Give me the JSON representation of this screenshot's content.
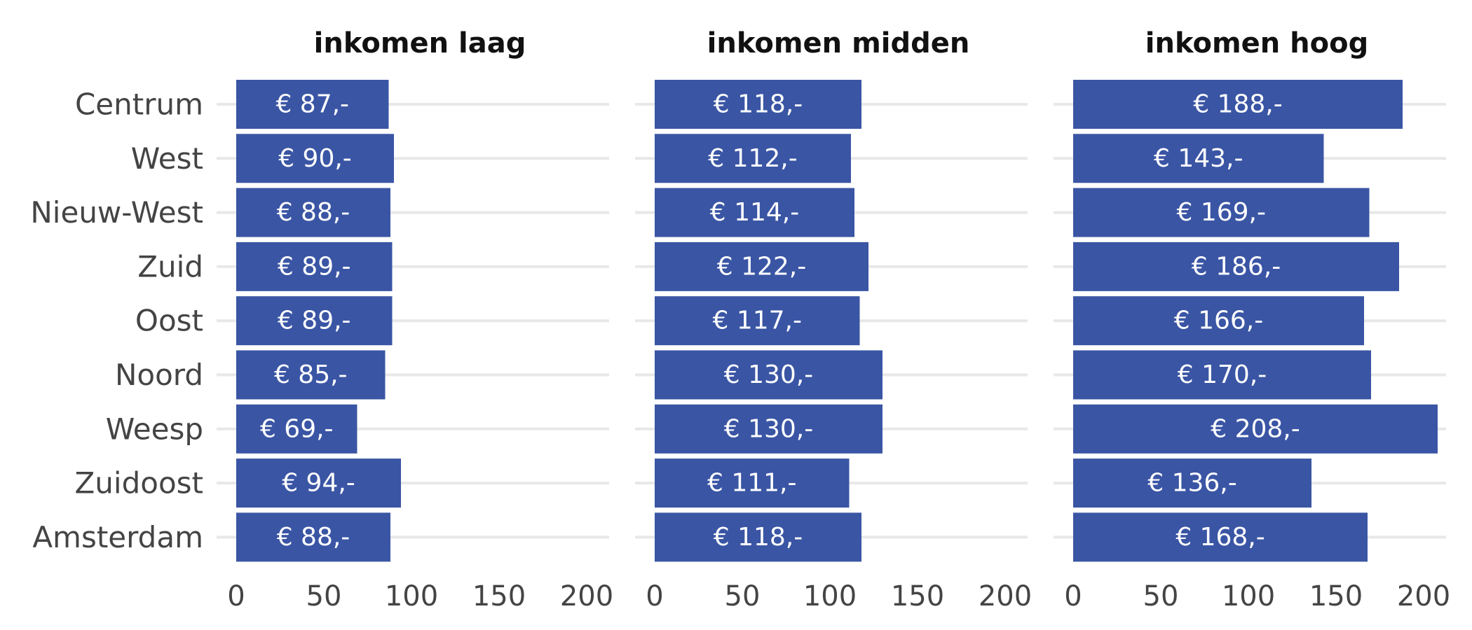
{
  "chart_data": {
    "type": "bar",
    "orientation": "horizontal",
    "facet_layout": "three panels side by side",
    "categories": [
      "Centrum",
      "West",
      "Nieuw-West",
      "Zuid",
      "Oost",
      "Noord",
      "Weesp",
      "Zuidoost",
      "Amsterdam"
    ],
    "xlim": [
      0,
      210
    ],
    "xticks": [
      0,
      50,
      100,
      150,
      200
    ],
    "xtick_labels": [
      "0",
      "50",
      "100",
      "150",
      "200"
    ],
    "bar_color": "#3a55a4",
    "grid": true,
    "legend": "none",
    "panels": [
      {
        "title": "inkomen laag",
        "values": [
          87,
          90,
          88,
          89,
          89,
          85,
          69,
          94,
          88
        ],
        "labels": [
          "€ 87,-",
          "€ 90,-",
          "€ 88,-",
          "€ 89,-",
          "€ 89,-",
          "€ 85,-",
          "€ 69,-",
          "€ 94,-",
          "€ 88,-"
        ]
      },
      {
        "title": "inkomen midden",
        "values": [
          118,
          112,
          114,
          122,
          117,
          130,
          130,
          111,
          118
        ],
        "labels": [
          "€ 118,-",
          "€ 112,-",
          "€ 114,-",
          "€ 122,-",
          "€ 117,-",
          "€ 130,-",
          "€ 130,-",
          "€ 111,-",
          "€ 118,-"
        ]
      },
      {
        "title": "inkomen hoog",
        "values": [
          188,
          143,
          169,
          186,
          166,
          170,
          208,
          136,
          168
        ],
        "labels": [
          "€ 188,-",
          "€ 143,-",
          "€ 169,-",
          "€ 186,-",
          "€ 166,-",
          "€ 170,-",
          "€ 208,-",
          "€ 136,-",
          "€ 168,-"
        ]
      }
    ]
  }
}
